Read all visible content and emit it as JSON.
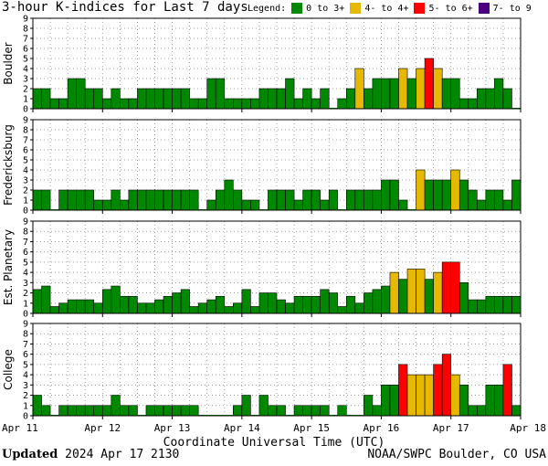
{
  "title": "3-hour K-indices for Last 7 days",
  "legend": {
    "label": "Legend:",
    "items": [
      {
        "label": "0 to 3+",
        "color": "#008800"
      },
      {
        "label": "4- to 4+",
        "color": "#e6b800"
      },
      {
        "label": "5- to 6+",
        "color": "#ff0000"
      },
      {
        "label": "7- to 9",
        "color": "#4b0082"
      }
    ]
  },
  "xlabel": "Coordinate Universal Time (UTC)",
  "footer": {
    "updated_label": "Updated",
    "updated_value": "2024 Apr 17 2130",
    "source": "NOAA/SWPC Boulder, CO USA"
  },
  "chart_data": {
    "type": "bar",
    "x_tick_labels": [
      "Apr 11",
      "Apr 12",
      "Apr 13",
      "Apr 14",
      "Apr 15",
      "Apr 16",
      "Apr 17",
      "Apr 18"
    ],
    "bins_per_day": 8,
    "ylim": [
      0,
      9
    ],
    "y_ticks": [
      0,
      1,
      2,
      3,
      4,
      5,
      6,
      7,
      8,
      9
    ],
    "grid": true,
    "color_scale": [
      {
        "min": 0,
        "max": 3.99,
        "color": "#008800"
      },
      {
        "min": 4,
        "max": 4.99,
        "color": "#e6b800"
      },
      {
        "min": 5,
        "max": 6.99,
        "color": "#ff0000"
      },
      {
        "min": 7,
        "max": 9,
        "color": "#4b0082"
      }
    ],
    "panels": [
      {
        "ylabel": "Boulder",
        "values": [
          2,
          2,
          1,
          1,
          3,
          3,
          2,
          2,
          1,
          2,
          1,
          1,
          2,
          2,
          2,
          2,
          2,
          2,
          1,
          1,
          3,
          3,
          1,
          1,
          1,
          1,
          2,
          2,
          2,
          3,
          1,
          2,
          1,
          2,
          0,
          1,
          2,
          4,
          2,
          3,
          3,
          3,
          4,
          3,
          4,
          5,
          4,
          3,
          3,
          1,
          1,
          2,
          2,
          3,
          2,
          0
        ]
      },
      {
        "ylabel": "Fredericksburg",
        "values": [
          2,
          2,
          0,
          2,
          2,
          2,
          2,
          1,
          1,
          2,
          1,
          2,
          2,
          2,
          2,
          2,
          2,
          2,
          2,
          0,
          1,
          2,
          3,
          2,
          1,
          1,
          0,
          2,
          2,
          2,
          1,
          2,
          2,
          1,
          2,
          0,
          2,
          2,
          2,
          2,
          3,
          3,
          1,
          0,
          4,
          3,
          3,
          3,
          4,
          3,
          2,
          1,
          2,
          2,
          1,
          3
        ]
      },
      {
        "ylabel": "Est. Planetary",
        "values": [
          2.33,
          2.67,
          0.67,
          1,
          1.33,
          1.33,
          1.33,
          1,
          2.33,
          2.67,
          1.67,
          1.67,
          1,
          1,
          1.33,
          1.67,
          2,
          2.33,
          0.67,
          1,
          1.33,
          1.67,
          0.67,
          1,
          2.33,
          0.67,
          2,
          2,
          1.33,
          1,
          1.67,
          1.67,
          1.67,
          2.33,
          2,
          0.67,
          1.67,
          1,
          2,
          2.33,
          2.67,
          4,
          3.33,
          4.33,
          4.33,
          3.33,
          4,
          5,
          5,
          3,
          1.33,
          1.33,
          1.67,
          1.67,
          1.67,
          1.67
        ]
      },
      {
        "ylabel": "College",
        "values": [
          2,
          1,
          0,
          1,
          1,
          1,
          1,
          1,
          1,
          2,
          1,
          1,
          0,
          1,
          1,
          1,
          1,
          1,
          1,
          0,
          0,
          0,
          0,
          1,
          2,
          0,
          2,
          1,
          1,
          0,
          1,
          1,
          1,
          1,
          0,
          1,
          0,
          0,
          2,
          1,
          3,
          3,
          5,
          4,
          4,
          4,
          5,
          6,
          4,
          3,
          1,
          1,
          3,
          3,
          5,
          1
        ]
      }
    ]
  }
}
